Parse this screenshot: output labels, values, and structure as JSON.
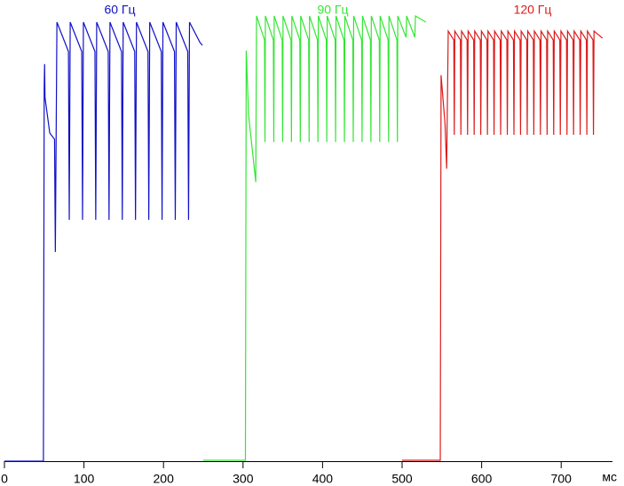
{
  "chart_data": {
    "type": "line",
    "x_label": "мс",
    "xlim": [
      0,
      779
    ],
    "ylim": [
      0,
      100
    ],
    "xticks": [
      0,
      100,
      200,
      300,
      400,
      500,
      600,
      700
    ],
    "series": [
      {
        "name": "60 Гц",
        "color": "#1010c8",
        "x": [
          0,
          49,
          50,
          50.5,
          51,
          57,
          63,
          64,
          66,
          80.5,
          81.5,
          82.7,
          97.2,
          98.2,
          99.3,
          113.8,
          114.8,
          116,
          130.5,
          131.5,
          132.7,
          147.2,
          148.2,
          149.3,
          163.8,
          164.8,
          166,
          180.5,
          181.5,
          182.7,
          197.2,
          198.2,
          199.3,
          213.8,
          214.8,
          216,
          230.5,
          231.5,
          232.7,
          246,
          249
        ],
        "values": [
          0,
          0,
          83.7,
          89.2,
          81.7,
          73.7,
          72.3,
          47,
          98.6,
          92,
          54.2,
          98.6,
          92,
          54.2,
          98.6,
          92,
          54.2,
          98.6,
          92,
          54.2,
          98.6,
          92,
          54.2,
          98.6,
          92,
          54.2,
          98.6,
          92,
          54.2,
          98.6,
          92,
          54.2,
          98.6,
          92,
          54.2,
          98.6,
          92,
          54.2,
          98.6,
          94,
          93.4
        ]
      },
      {
        "name": "90 Гц",
        "color": "#33e633",
        "x": [
          250,
          303,
          304,
          307,
          316,
          317,
          327,
          327.6,
          328.1,
          338.1,
          338.7,
          339.2,
          349.2,
          349.8,
          350.3,
          360.3,
          360.9,
          361.4,
          371.4,
          372,
          372.5,
          382.5,
          383.1,
          383.6,
          393.6,
          394.2,
          394.7,
          404.7,
          405.3,
          405.8,
          415.8,
          416.4,
          416.9,
          426.9,
          427.5,
          428,
          438,
          438.6,
          439.1,
          449.1,
          449.7,
          450.2,
          460.2,
          460.8,
          461.3,
          471.3,
          471.9,
          472.4,
          482.4,
          483,
          483.5,
          493.5,
          494.1,
          494.6,
          505,
          505.7,
          516,
          516.8,
          530
        ],
        "values": [
          0.2,
          0.2,
          92.2,
          77.7,
          62.7,
          100,
          94.6,
          71.7,
          100,
          94.6,
          71.7,
          100,
          94.6,
          71.7,
          100,
          94.6,
          71.7,
          100,
          94.6,
          71.7,
          100,
          94.6,
          71.7,
          100,
          94.6,
          71.7,
          100,
          94.6,
          71.7,
          100,
          94.6,
          71.7,
          100,
          94.6,
          71.7,
          100,
          94.6,
          71.7,
          100,
          94.6,
          71.7,
          100,
          94.6,
          71.7,
          100,
          94.6,
          71.7,
          100,
          94.6,
          71.7,
          100,
          94.6,
          71.7,
          100,
          95.2,
          100,
          95.2,
          100,
          98.6
        ]
      },
      {
        "name": "120 Гц",
        "color": "#dd1a1a",
        "x": [
          500,
          548,
          549,
          554,
          556,
          558,
          565,
          565.6,
          566.3,
          573.3,
          573.9,
          574.7,
          581.7,
          582.3,
          583,
          590,
          590.6,
          591.3,
          598.3,
          598.9,
          599.7,
          606.7,
          607.3,
          608,
          615,
          615.6,
          616.3,
          623.3,
          623.9,
          624.7,
          631.7,
          632.3,
          633,
          640,
          640.6,
          641.3,
          648.3,
          648.9,
          649.7,
          656.7,
          657.3,
          658,
          665,
          665.6,
          666.3,
          673.3,
          673.9,
          674.7,
          681.7,
          682.3,
          683,
          690,
          690.6,
          691.3,
          698.3,
          698.9,
          699.7,
          706.7,
          707.3,
          708,
          715,
          715.6,
          716.3,
          723.3,
          723.9,
          724.7,
          731.7,
          732.3,
          733,
          740,
          740.6,
          741.3,
          752
        ],
        "values": [
          0.2,
          0.2,
          86.7,
          75.7,
          65.7,
          96.6,
          94.6,
          73.3,
          96.6,
          94.6,
          73.3,
          96.6,
          94.6,
          73.3,
          96.6,
          94.6,
          73.3,
          96.6,
          94.6,
          73.3,
          96.6,
          94.6,
          73.3,
          96.6,
          94.6,
          73.3,
          96.6,
          94.6,
          73.3,
          96.6,
          94.6,
          73.3,
          96.6,
          94.6,
          73.3,
          96.6,
          94.6,
          73.3,
          96.6,
          94.6,
          73.3,
          96.6,
          94.6,
          73.3,
          96.6,
          94.6,
          73.3,
          96.6,
          94.6,
          73.3,
          96.6,
          94.6,
          73.3,
          96.6,
          94.6,
          73.3,
          96.6,
          94.6,
          73.3,
          96.6,
          94.6,
          73.3,
          96.6,
          94.6,
          73.3,
          96.6,
          94.6,
          73.3,
          96.6,
          94.6,
          73.3,
          96.6,
          95
        ]
      }
    ]
  }
}
